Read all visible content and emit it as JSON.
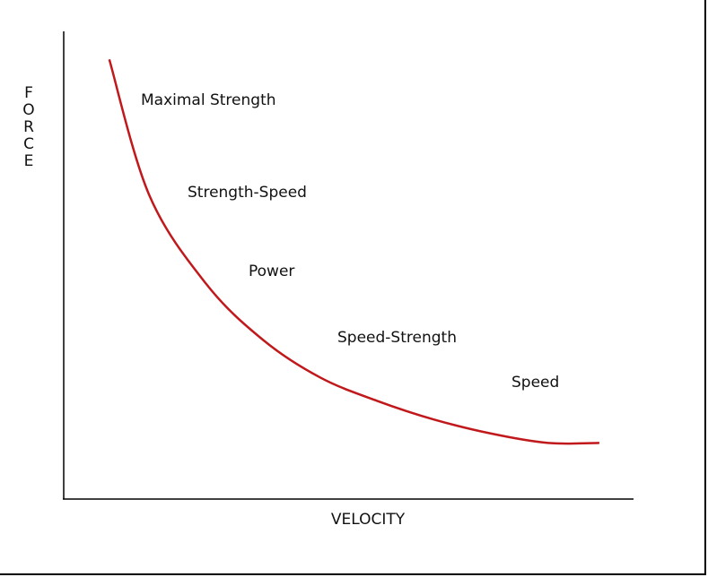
{
  "chart_data": {
    "type": "line",
    "title": "",
    "xlabel": "VELOCITY",
    "ylabel": "FORCE",
    "grid": false,
    "legend": "none",
    "axis_ticks": false,
    "series": [
      {
        "color": "#c0181b",
        "description_points": [
          [
            0.08,
            0.94
          ],
          [
            0.15,
            0.65
          ],
          [
            0.25,
            0.46
          ],
          [
            0.35,
            0.34
          ],
          [
            0.45,
            0.26
          ],
          [
            0.55,
            0.21
          ],
          [
            0.65,
            0.17
          ],
          [
            0.75,
            0.14
          ],
          [
            0.85,
            0.12
          ],
          [
            0.94,
            0.12
          ]
        ]
      }
    ],
    "annotations": [
      "Maximal Strength",
      "Strength-Speed",
      "Power",
      "Speed-Strength",
      "Speed"
    ]
  }
}
